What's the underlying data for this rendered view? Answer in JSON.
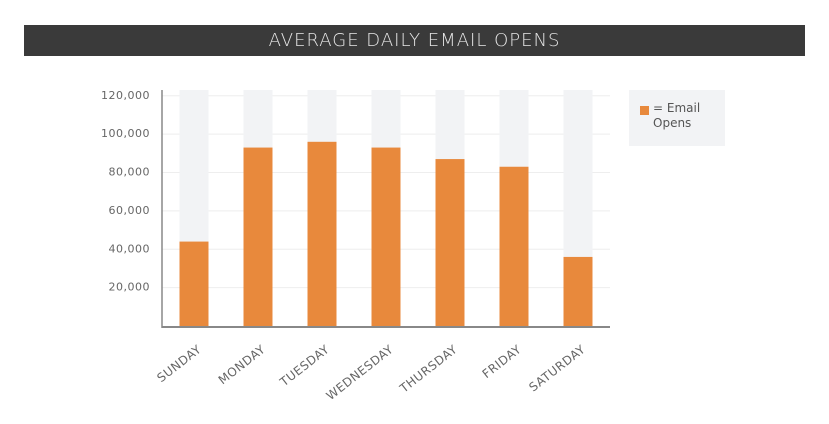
{
  "chart_data": {
    "type": "bar",
    "title": "AVERAGE DAILY EMAIL OPENS",
    "categories": [
      "SUNDAY",
      "MONDAY",
      "TUESDAY",
      "WEDNESDAY",
      "THURSDAY",
      "FRIDAY",
      "SATURDAY"
    ],
    "series": [
      {
        "name": "= Email Opens",
        "color": "#e8893c",
        "values": [
          44000,
          93000,
          96000,
          93000,
          87000,
          83000,
          36000
        ]
      }
    ],
    "ylim": [
      0,
      123000
    ],
    "yticks": [
      {
        "value": 20000,
        "label": "20,000"
      },
      {
        "value": 40000,
        "label": "40,000"
      },
      {
        "value": 60000,
        "label": "60,000"
      },
      {
        "value": 80000,
        "label": "80,000"
      },
      {
        "value": 100000,
        "label": "100,000"
      },
      {
        "value": 120000,
        "label": "120,000"
      }
    ],
    "grid": true,
    "legend": "right"
  }
}
